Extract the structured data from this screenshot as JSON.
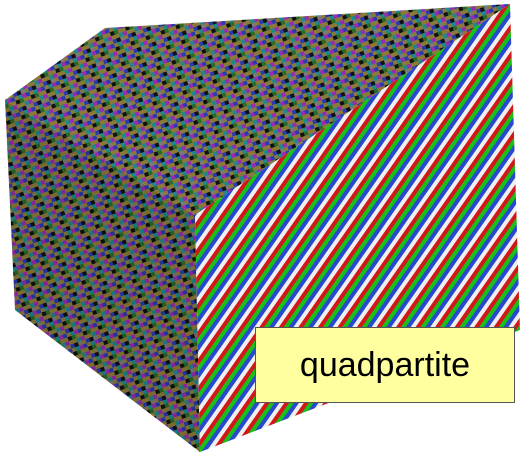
{
  "label": "quadpartite"
}
